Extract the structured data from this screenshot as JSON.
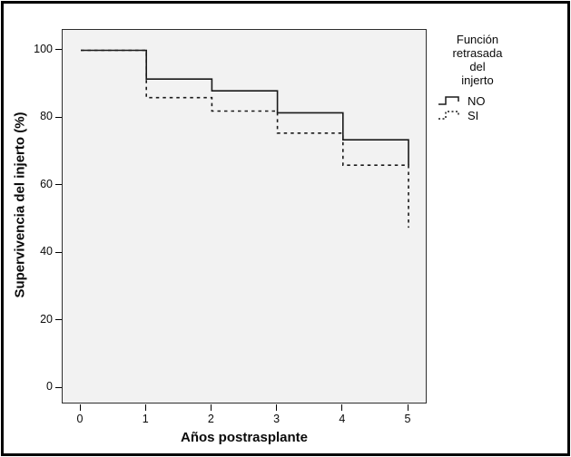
{
  "figure": {
    "background": "#ffffff",
    "frame_color": "#000000",
    "plot_background": "#f2f2f2",
    "line_color": "#1a1a1a"
  },
  "chart_data": {
    "type": "line",
    "subtype": "kaplan-meier-step",
    "title": "",
    "xlabel": "Años postrasplante",
    "ylabel": "Supervivencia del injerto (%)",
    "xlim": [
      0,
      5
    ],
    "ylim": [
      0,
      100
    ],
    "x_ticks": [
      0,
      1,
      2,
      3,
      4,
      5
    ],
    "y_ticks": [
      0,
      20,
      40,
      60,
      80,
      100
    ],
    "grid": false,
    "legend_position": "right-outside",
    "legend": {
      "title": "Función retrasada del injerto",
      "title_lines": [
        "Función",
        "retrasada",
        "del",
        "injerto"
      ],
      "items": [
        {
          "label": "NO",
          "line_style": "solid"
        },
        {
          "label": "SI",
          "line_style": "dotted"
        }
      ]
    },
    "series": [
      {
        "name": "NO",
        "line_style": "solid",
        "note": "survival % after each yearly drop; step curve holds value between years",
        "points": [
          [
            0,
            100
          ],
          [
            1,
            91.5
          ],
          [
            2,
            88
          ],
          [
            3,
            81.5
          ],
          [
            4,
            73.5
          ],
          [
            5,
            66
          ]
        ]
      },
      {
        "name": "SI",
        "line_style": "dotted",
        "note": "survival % after each yearly drop; step curve holds value between years",
        "points": [
          [
            0,
            100
          ],
          [
            1,
            86
          ],
          [
            2,
            82
          ],
          [
            3,
            75.5
          ],
          [
            4,
            66
          ],
          [
            5,
            47.5
          ]
        ]
      }
    ]
  }
}
